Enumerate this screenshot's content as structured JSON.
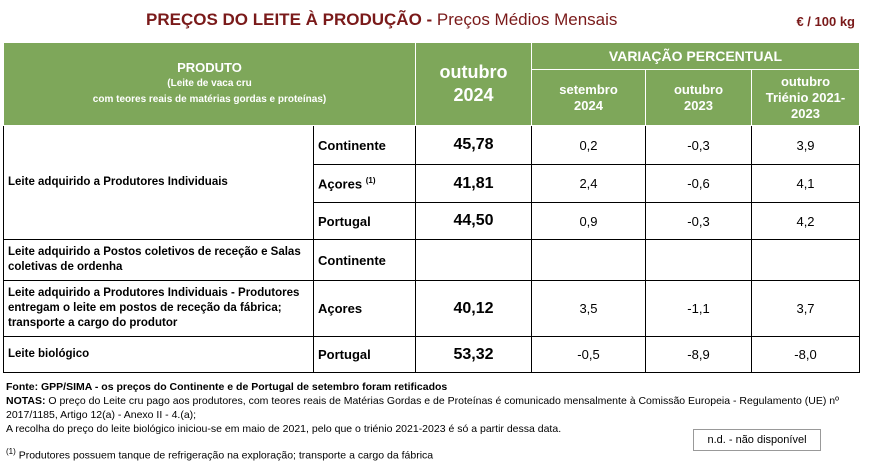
{
  "header": {
    "title": "PREÇOS DO LEITE À PRODUÇÃO",
    "title_sep": " - ",
    "subtitle": "Preços Médios Mensais",
    "unit": "€ / 100 kg"
  },
  "columns": {
    "produto": "PRODUTO",
    "produto_sub1": "(Leite de vaca cru",
    "produto_sub2": "com teores reais de matérias gordas e proteínas)",
    "month_label": "outubro",
    "month_year": "2024",
    "variacao": "VARIAÇÃO PERCENTUAL",
    "v1_a": "setembro",
    "v1_b": "2024",
    "v2_a": "outubro",
    "v2_b": "2023",
    "v3_a": "outubro",
    "v3_b": "Triénio 2021-2023"
  },
  "rows": {
    "r1_label": "Leite adquirido a Produtores Individuais",
    "r1a": {
      "loc": "Continente",
      "val": "45,78",
      "v1": "0,2",
      "v2": "-0,3",
      "v3": "3,9"
    },
    "r1b": {
      "loc": "Açores",
      "sup": "(1)",
      "val": "41,81",
      "v1": "2,4",
      "v2": "-0,6",
      "v3": "4,1"
    },
    "r1c": {
      "loc": "Portugal",
      "val": "44,50",
      "v1": "0,9",
      "v2": "-0,3",
      "v3": "4,2"
    },
    "r2": {
      "label": "Leite adquirido a Postos coletivos de receção e Salas coletivas de ordenha",
      "loc": "Continente"
    },
    "r3": {
      "label": "Leite adquirido a Produtores Individuais - Produtores entregam o leite em postos de receção da fábrica; transporte a cargo do produtor",
      "loc": "Açores",
      "val": "40,12",
      "v1": "3,5",
      "v2": "-1,1",
      "v3": "3,7"
    },
    "r4": {
      "label": "Leite biológico",
      "loc": "Portugal",
      "val": "53,32",
      "v1": "-0,5",
      "v2": "-8,9",
      "v3": "-8,0"
    }
  },
  "notes": {
    "fonte": "Fonte: GPP/SIMA - os preços do Continente e de Portugal de setembro foram retificados",
    "notas_label": "NOTAS:",
    "notas_text": " O preço do Leite cru pago aos produtores, com teores reais de Matérias Gordas e de Proteínas é comunicado mensalmente à Comissão Europeia - Regulamento (UE) nº 2017/1185, Artigo 12(a) - Anexo II - 4.(a);",
    "line3": "A recolha do preço do leite biológico iniciou-se em maio de 2021, pelo que o triénio 2021-2023 é só a partir dessa data.",
    "nd": "n.d. - não disponível",
    "foot_sup": "(1)",
    "foot": " Produtores possuem tanque de refrigeração na exploração; transporte a cargo da fábrica"
  }
}
